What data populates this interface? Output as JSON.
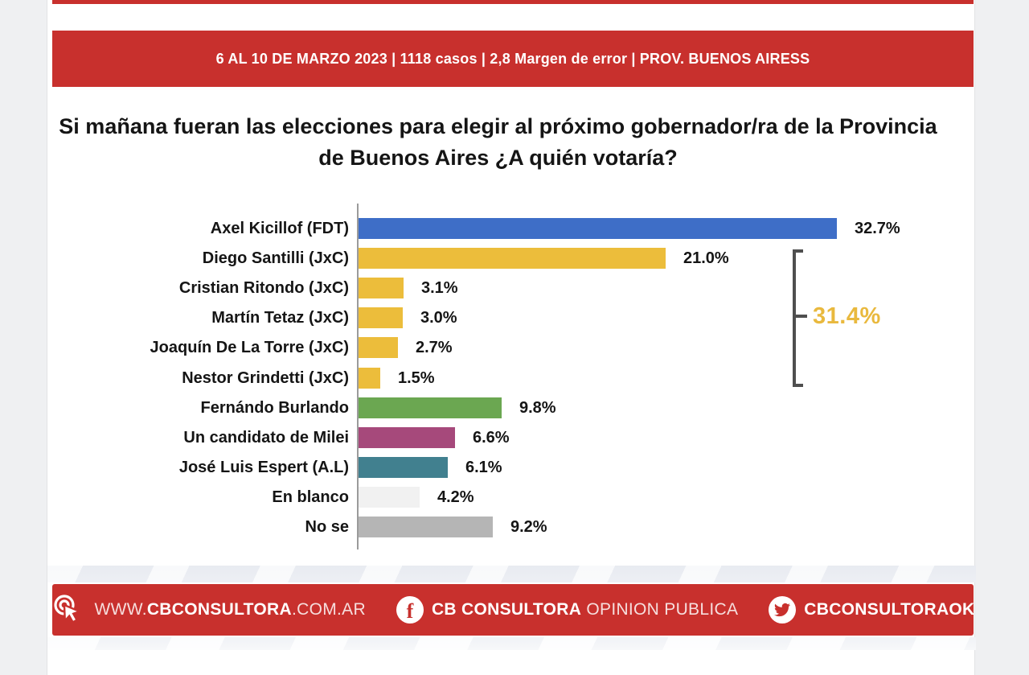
{
  "banner": {
    "text": "6 AL 10 DE MARZO 2023  |  1118 casos  |  2,8 Margen de error  | PROV. BUENOS AIRESS"
  },
  "title": {
    "line1": "Si mañana fueran las elecciones para elegir al próximo gobernador/ra de la Provincia",
    "line2": "de Buenos Aires ¿A quién votaría?"
  },
  "chart_data": {
    "type": "bar",
    "orientation": "horizontal",
    "unit": "%",
    "xlim": [
      0,
      35
    ],
    "gridlines": false,
    "categories": [
      "Axel Kicillof (FDT)",
      "Diego Santilli (JxC)",
      "Cristian Ritondo (JxC)",
      "Martín Tetaz (JxC)",
      "Joaquín De La Torre (JxC)",
      "Nestor Grindetti (JxC)",
      "Fernándo Burlando",
      "Un candidato de Milei",
      "José Luis Espert (A.L)",
      "En blanco",
      "No se"
    ],
    "values": [
      32.7,
      21.0,
      3.1,
      3.0,
      2.7,
      1.5,
      9.8,
      6.6,
      6.1,
      4.2,
      9.2
    ],
    "value_labels": [
      "32.7%",
      "21.0%",
      "3.1%",
      "3.0%",
      "2.7%",
      "1.5%",
      "9.8%",
      "6.6%",
      "6.1%",
      "4.2%",
      "9.2%"
    ],
    "bar_colors": [
      "#3E6EC7",
      "#ECBD3B",
      "#ECBD3B",
      "#ECBD3B",
      "#ECBD3B",
      "#ECBD3B",
      "#6BA751",
      "#A6497B",
      "#41808F",
      "#F1F1F1",
      "#B5B5B5"
    ],
    "annotation": {
      "text": "31.4%",
      "color": "#E9B93E",
      "applies_to": [
        "Diego Santilli (JxC)",
        "Cristian Ritondo (JxC)",
        "Martín Tetaz (JxC)",
        "Joaquín De La Torre (JxC)",
        "Nestor Grindetti (JxC)"
      ]
    }
  },
  "footer": {
    "website": {
      "prefix": "WWW.",
      "brand": "CBCONSULTORA",
      "suffix": "COM.AR"
    },
    "facebook": {
      "bold": "CB CONSULTORA",
      "light": "OPINION PUBLICA"
    },
    "twitter": {
      "handle": "CBCONSULTORAOK"
    }
  },
  "colors": {
    "accent_red": "#C8302D",
    "annotation_yellow": "#E9B93E"
  }
}
